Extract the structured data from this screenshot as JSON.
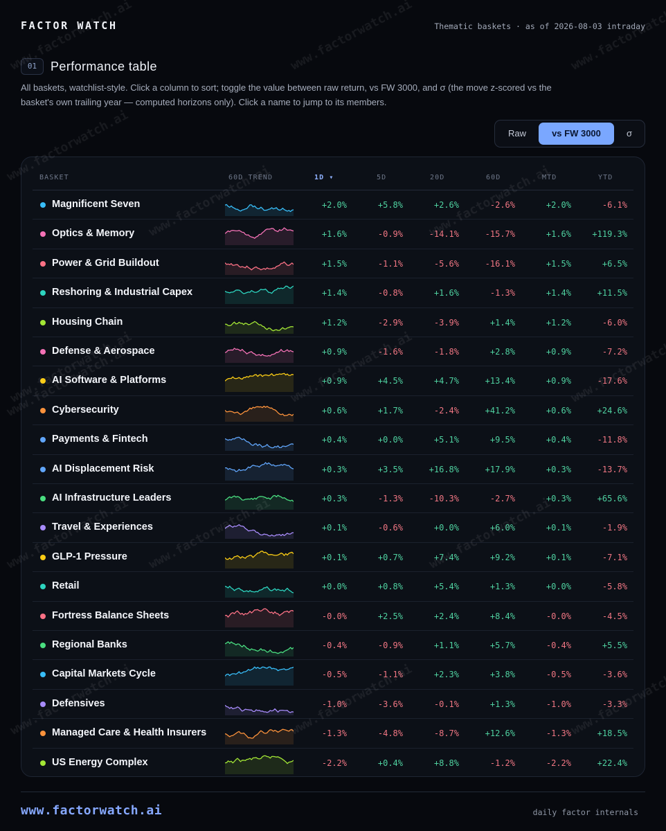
{
  "header": {
    "brand": "FACTOR WATCH",
    "as_of": "Thematic baskets · as of 2026-08-03 intraday"
  },
  "section": {
    "number": "01",
    "title": "Performance table",
    "description": "All baskets, watchlist-style. Click a column to sort; toggle the value between raw return, vs FW 3000, and σ (the move z-scored vs the basket's own trailing year — computed horizons only). Click a name to jump to its members."
  },
  "toggle": {
    "options": [
      "Raw",
      "vs FW 3000",
      "σ"
    ],
    "selected": "vs FW 3000"
  },
  "table": {
    "columns": {
      "basket": "BASKET",
      "trend": "60D TREND",
      "d1": "1D ▾",
      "d5": "5D",
      "d20": "20D",
      "d60": "60D",
      "mtd": "MTD",
      "ytd": "YTD"
    },
    "sorted_by": "1D",
    "sort_direction": "descending",
    "rows": [
      {
        "name": "Magnificent Seven",
        "color": "#38bdf8",
        "values": [
          "+2.0%",
          "+5.8%",
          "+2.6%",
          "-2.6%",
          "+2.0%",
          "-6.1%"
        ]
      },
      {
        "name": "Optics & Memory",
        "color": "#f472b6",
        "values": [
          "+1.6%",
          "-0.9%",
          "-14.1%",
          "-15.7%",
          "+1.6%",
          "+119.3%"
        ]
      },
      {
        "name": "Power & Grid Buildout",
        "color": "#fb7185",
        "values": [
          "+1.5%",
          "-1.1%",
          "-5.6%",
          "-16.1%",
          "+1.5%",
          "+6.5%"
        ]
      },
      {
        "name": "Reshoring & Industrial Capex",
        "color": "#2dd4bf",
        "values": [
          "+1.4%",
          "-0.8%",
          "+1.6%",
          "-1.3%",
          "+1.4%",
          "+11.5%"
        ]
      },
      {
        "name": "Housing Chain",
        "color": "#a3e635",
        "values": [
          "+1.2%",
          "-2.9%",
          "-3.9%",
          "+1.4%",
          "+1.2%",
          "-6.0%"
        ]
      },
      {
        "name": "Defense & Aerospace",
        "color": "#f472b6",
        "values": [
          "+0.9%",
          "-1.6%",
          "-1.8%",
          "+2.8%",
          "+0.9%",
          "-7.2%"
        ]
      },
      {
        "name": "AI Software & Platforms",
        "color": "#facc15",
        "values": [
          "+0.9%",
          "+4.5%",
          "+4.7%",
          "+13.4%",
          "+0.9%",
          "-17.6%"
        ]
      },
      {
        "name": "Cybersecurity",
        "color": "#fb923c",
        "values": [
          "+0.6%",
          "+1.7%",
          "-2.4%",
          "+41.2%",
          "+0.6%",
          "+24.6%"
        ]
      },
      {
        "name": "Payments & Fintech",
        "color": "#60a5fa",
        "values": [
          "+0.4%",
          "+0.0%",
          "+5.1%",
          "+9.5%",
          "+0.4%",
          "-11.8%"
        ]
      },
      {
        "name": "AI Displacement Risk",
        "color": "#60a5fa",
        "values": [
          "+0.3%",
          "+3.5%",
          "+16.8%",
          "+17.9%",
          "+0.3%",
          "-13.7%"
        ]
      },
      {
        "name": "AI Infrastructure Leaders",
        "color": "#4ade80",
        "values": [
          "+0.3%",
          "-1.3%",
          "-10.3%",
          "-2.7%",
          "+0.3%",
          "+65.6%"
        ]
      },
      {
        "name": "Travel & Experiences",
        "color": "#a78bfa",
        "values": [
          "+0.1%",
          "-0.6%",
          "+0.0%",
          "+6.0%",
          "+0.1%",
          "-1.9%"
        ]
      },
      {
        "name": "GLP-1 Pressure",
        "color": "#facc15",
        "values": [
          "+0.1%",
          "+0.7%",
          "+7.4%",
          "+9.2%",
          "+0.1%",
          "-7.1%"
        ]
      },
      {
        "name": "Retail",
        "color": "#2dd4bf",
        "values": [
          "+0.0%",
          "+0.8%",
          "+5.4%",
          "+1.3%",
          "+0.0%",
          "-5.8%"
        ]
      },
      {
        "name": "Fortress Balance Sheets",
        "color": "#fb7185",
        "values": [
          "-0.0%",
          "+2.5%",
          "+2.4%",
          "+8.4%",
          "-0.0%",
          "-4.5%"
        ]
      },
      {
        "name": "Regional Banks",
        "color": "#4ade80",
        "values": [
          "-0.4%",
          "-0.9%",
          "+1.1%",
          "+5.7%",
          "-0.4%",
          "+5.5%"
        ]
      },
      {
        "name": "Capital Markets Cycle",
        "color": "#38bdf8",
        "values": [
          "-0.5%",
          "-1.1%",
          "+2.3%",
          "+3.8%",
          "-0.5%",
          "-3.6%"
        ]
      },
      {
        "name": "Defensives",
        "color": "#a78bfa",
        "values": [
          "-1.0%",
          "-3.6%",
          "-0.1%",
          "+1.3%",
          "-1.0%",
          "-3.3%"
        ]
      },
      {
        "name": "Managed Care & Health Insurers",
        "color": "#fb923c",
        "values": [
          "-1.3%",
          "-4.8%",
          "-8.7%",
          "+12.6%",
          "-1.3%",
          "+18.5%"
        ]
      },
      {
        "name": "US Energy Complex",
        "color": "#a3e635",
        "values": [
          "-2.2%",
          "+0.4%",
          "+8.8%",
          "-1.2%",
          "-2.2%",
          "+22.4%"
        ]
      }
    ]
  },
  "colors": {
    "background": "#07090e",
    "panel": "#0c1017",
    "accent": "#7aa7ff",
    "positive": "#4fd1a0",
    "negative": "#f07683"
  },
  "watermark": "www.factorwatch.ai",
  "footer": {
    "url": "www.factorwatch.ai",
    "tagline": "daily factor internals"
  }
}
